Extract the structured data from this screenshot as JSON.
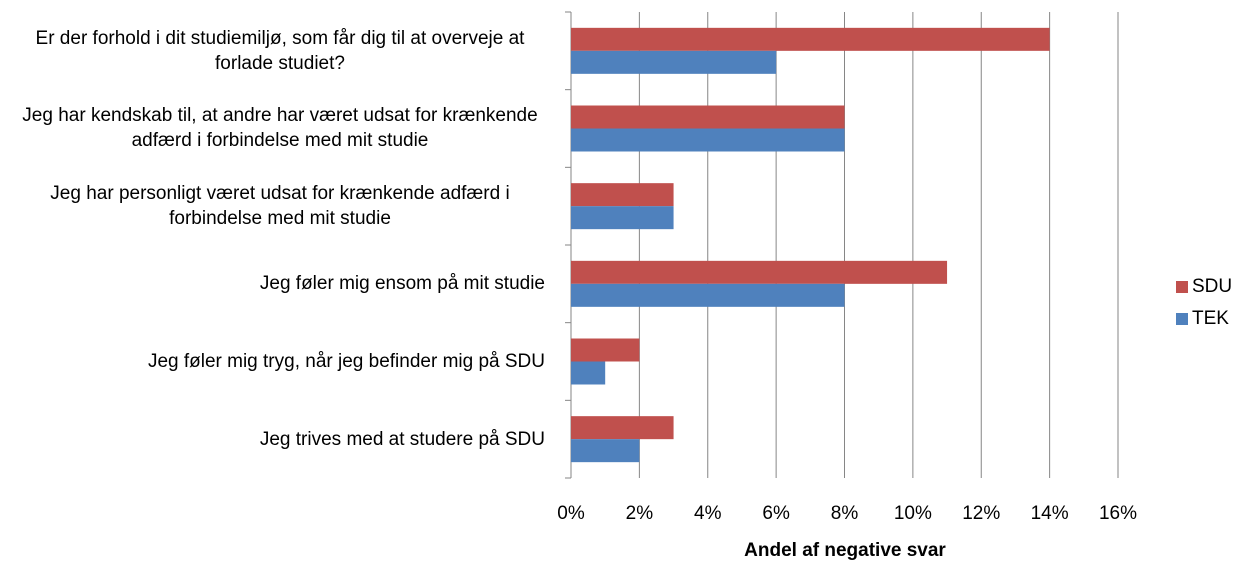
{
  "chart_data": {
    "type": "bar",
    "orientation": "horizontal",
    "x_label": "Andel af negative svar",
    "categories": [
      "Er der forhold i dit studiemiljø, som får dig til at overveje at forlade studiet?",
      "Jeg har kendskab til, at andre har været udsat for krænkende adfærd i forbindelse med mit studie",
      "Jeg har personligt været udsat for krænkende adfærd i forbindelse med mit studie",
      "Jeg føler mig ensom på mit studie",
      "Jeg føler mig tryg, når jeg befinder mig på SDU",
      "Jeg trives med at studere på SDU"
    ],
    "series": [
      {
        "name": "SDU",
        "color": "#c0504d",
        "values": [
          14,
          8,
          3,
          11,
          2,
          3
        ]
      },
      {
        "name": "TEK",
        "color": "#4f81bd",
        "values": [
          6,
          8,
          3,
          8,
          1,
          2
        ]
      }
    ],
    "xlim": [
      0,
      16
    ],
    "xticks": [
      {
        "value": 0,
        "label": "0%"
      },
      {
        "value": 2,
        "label": "2%"
      },
      {
        "value": 4,
        "label": "4%"
      },
      {
        "value": 6,
        "label": "6%"
      },
      {
        "value": 8,
        "label": "8%"
      },
      {
        "value": 10,
        "label": "10%"
      },
      {
        "value": 12,
        "label": "12%"
      },
      {
        "value": 14,
        "label": "14%"
      },
      {
        "value": 16,
        "label": "16%"
      }
    ],
    "grid": true,
    "legend": "right"
  }
}
